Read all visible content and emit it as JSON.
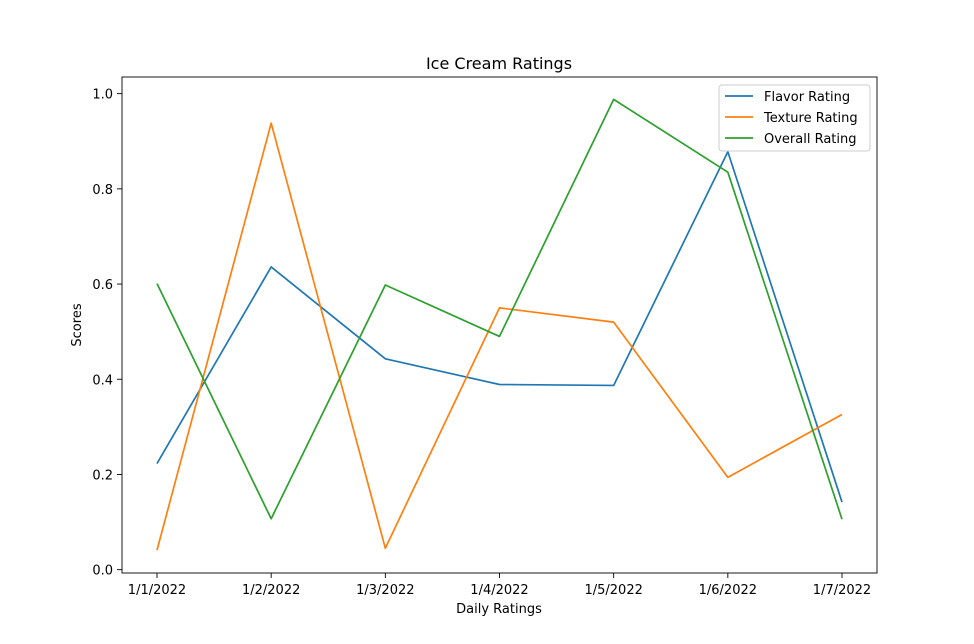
{
  "chart_data": {
    "type": "line",
    "title": "Ice Cream Ratings",
    "xlabel": "Daily Ratings",
    "ylabel": "Scores",
    "categories": [
      "1/1/2022",
      "1/2/2022",
      "1/3/2022",
      "1/4/2022",
      "1/5/2022",
      "1/6/2022",
      "1/7/2022"
    ],
    "yticks": [
      "0.0",
      "0.2",
      "0.4",
      "0.6",
      "0.8",
      "1.0"
    ],
    "ylim": [
      -0.007,
      1.035
    ],
    "grid": false,
    "legend_position": "top-right",
    "series": [
      {
        "name": "Flavor Rating",
        "color": "#1f77b4",
        "values": [
          0.223,
          0.636,
          0.443,
          0.389,
          0.387,
          0.878,
          0.142
        ]
      },
      {
        "name": "Texture Rating",
        "color": "#ff7f0e",
        "values": [
          0.041,
          0.938,
          0.045,
          0.55,
          0.52,
          0.194,
          0.326
        ]
      },
      {
        "name": "Overall Rating",
        "color": "#2ca02c",
        "values": [
          0.601,
          0.107,
          0.598,
          0.49,
          0.988,
          0.835,
          0.106
        ]
      }
    ]
  }
}
